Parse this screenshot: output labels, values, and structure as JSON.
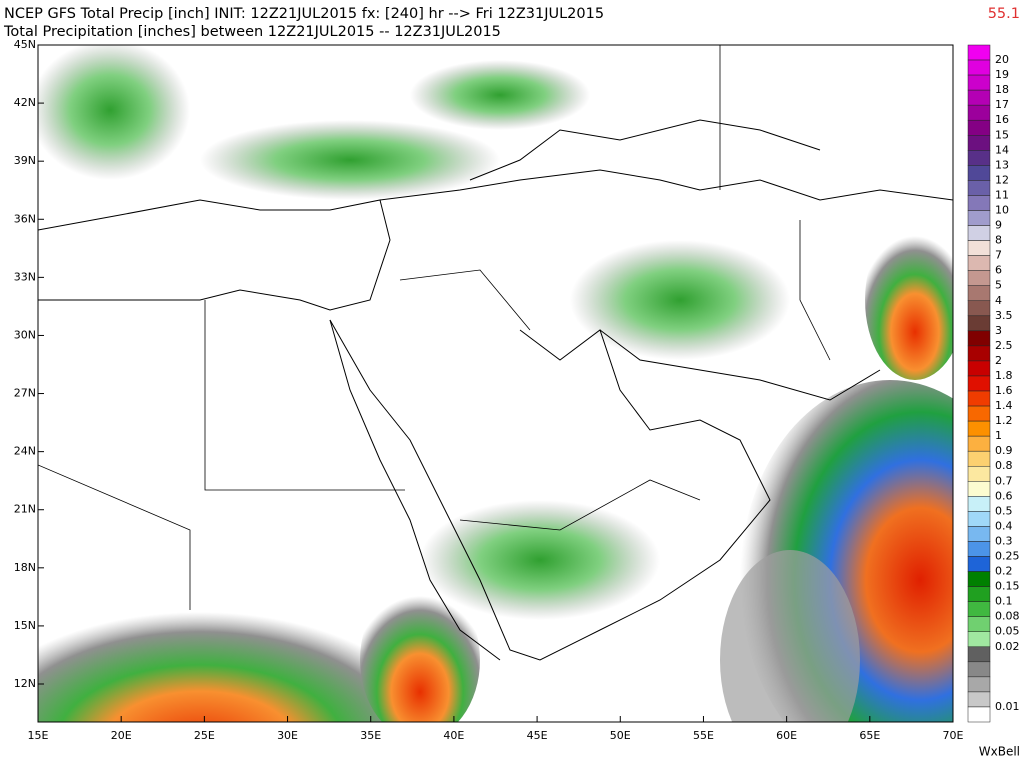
{
  "header": {
    "title": "NCEP GFS Total Precip [inch] INIT: 12Z21JUL2015 fx: [240] hr --> Fri 12Z31JUL2015",
    "subtitle": "Total Precipitation [inches] between 12Z21JUL2015 -- 12Z31JUL2015",
    "max_value": "55.1"
  },
  "map": {
    "lat_labels": [
      "45N",
      "42N",
      "39N",
      "36N",
      "33N",
      "30N",
      "27N",
      "24N",
      "21N",
      "18N",
      "15N",
      "12N"
    ],
    "lon_labels": [
      "15E",
      "20E",
      "25E",
      "30E",
      "35E",
      "40E",
      "45E",
      "50E",
      "55E",
      "60E",
      "65E",
      "70E"
    ]
  },
  "colorbar": {
    "labels": [
      "20",
      "19",
      "18",
      "17",
      "16",
      "15",
      "14",
      "13",
      "12",
      "11",
      "10",
      "9",
      "8",
      "7",
      "6",
      "5",
      "4",
      "3.5",
      "3",
      "2.5",
      "2",
      "1.8",
      "1.6",
      "1.4",
      "1.2",
      "1",
      "0.9",
      "0.8",
      "0.7",
      "0.6",
      "0.5",
      "0.4",
      "0.3",
      "0.25",
      "0.2",
      "0.15",
      "0.1",
      "0.08",
      "0.05",
      "0.02",
      "0.01"
    ],
    "colors": [
      "#f000f0",
      "#e000e0",
      "#cc00cc",
      "#b400b4",
      "#9c009c",
      "#840084",
      "#6c1080",
      "#583088",
      "#504898",
      "#6a60a8",
      "#8478b8",
      "#a09ccc",
      "#d0d0e4",
      "#f2e0d8",
      "#dcb8b0",
      "#c49890",
      "#a87870",
      "#885850",
      "#6a3c34",
      "#800000",
      "#a80000",
      "#c80000",
      "#e01000",
      "#f03c00",
      "#f86800",
      "#fc9000",
      "#fcb040",
      "#fcd070",
      "#fce8a0",
      "#fcfcd0",
      "#c8f0f8",
      "#a0d8f8",
      "#78b8f0",
      "#4c94e8",
      "#1e64d8",
      "#008000",
      "#20a020",
      "#40b840",
      "#70d070",
      "#a0e8a0",
      "#606060",
      "#888888",
      "#a8a8a8",
      "#c8c8c8",
      "#ffffff"
    ]
  },
  "credit": "WxBell"
}
